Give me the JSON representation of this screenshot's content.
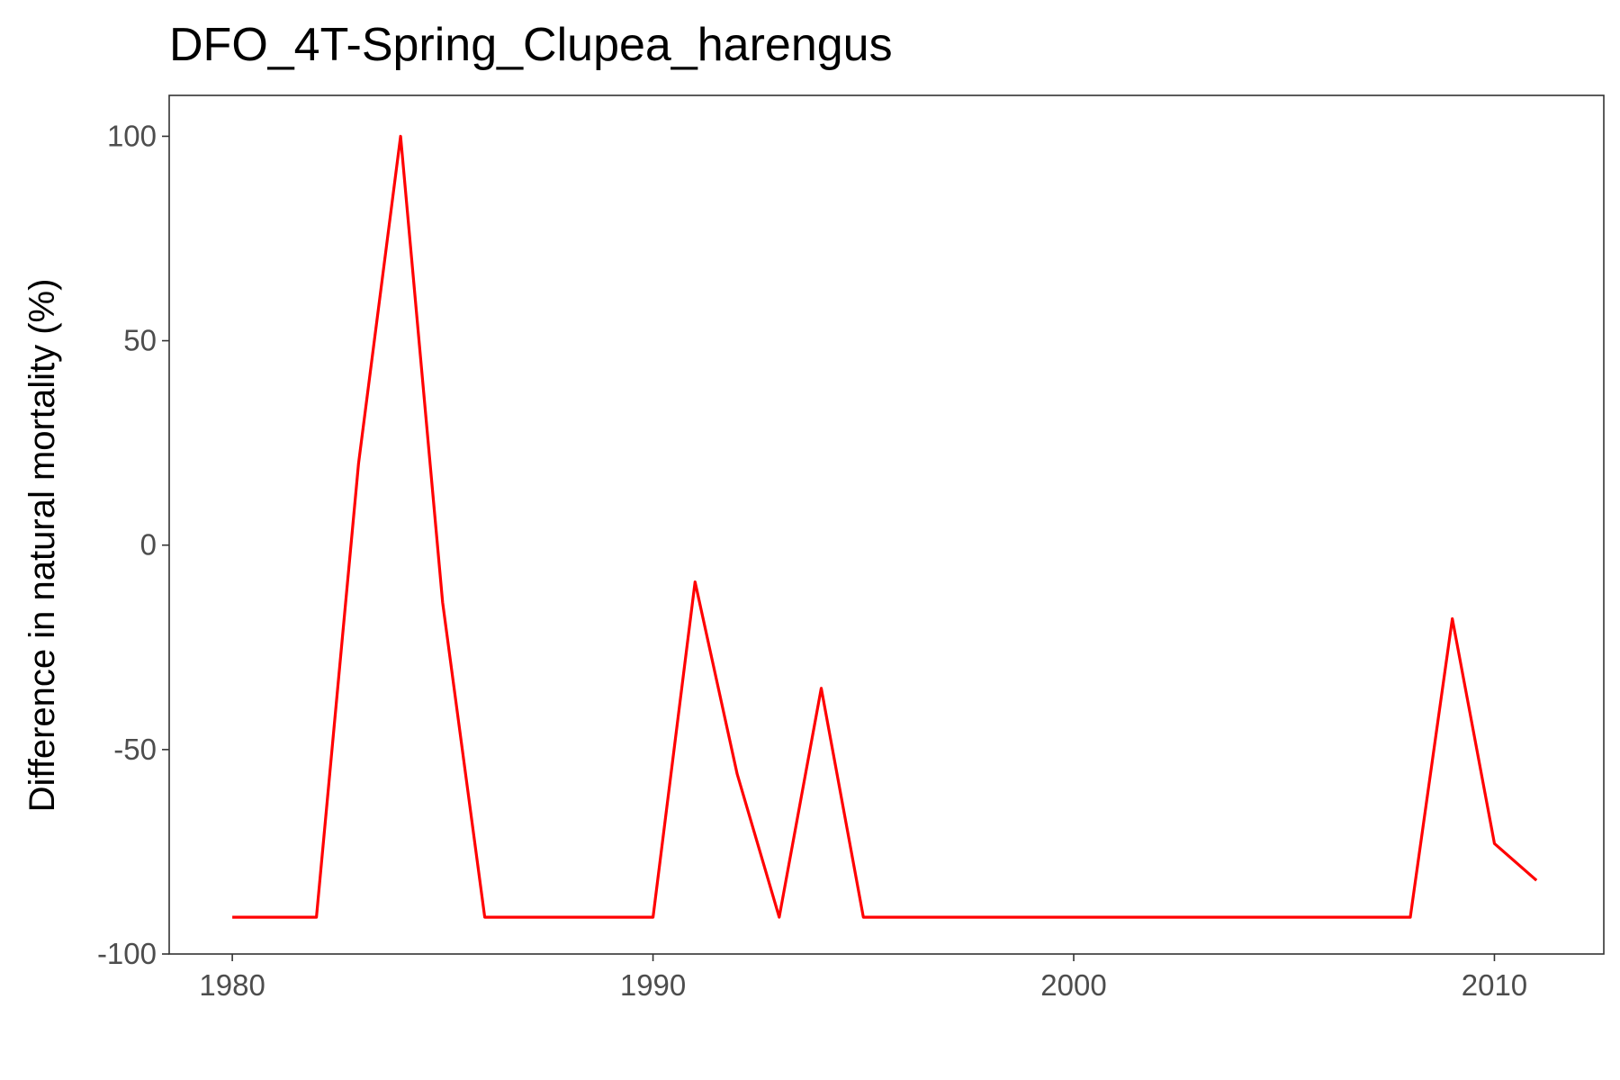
{
  "chart_data": {
    "type": "line",
    "title": "DFO_4T-Spring_Clupea_harengus",
    "xlabel": "",
    "ylabel": "Difference in natural mortality (%)",
    "xlim": [
      1978.5,
      2012.6
    ],
    "ylim": [
      -100,
      110
    ],
    "x_ticks": [
      1980,
      1990,
      2000,
      2010
    ],
    "y_ticks": [
      -100,
      -50,
      0,
      50,
      100
    ],
    "grid": false,
    "series": [
      {
        "color": "#ff0000",
        "x": [
          1980,
          1981,
          1982,
          1983,
          1984,
          1985,
          1986,
          1987,
          1988,
          1989,
          1990,
          1991,
          1992,
          1993,
          1994,
          1995,
          1996,
          1997,
          1998,
          1999,
          2000,
          2001,
          2002,
          2003,
          2004,
          2005,
          2006,
          2007,
          2008,
          2009,
          2010,
          2011
        ],
        "y": [
          -91,
          -91,
          -91,
          20,
          100,
          -14,
          -91,
          -91,
          -91,
          -91,
          -91,
          -9,
          -56,
          -91,
          -35,
          -91,
          -91,
          -91,
          -91,
          -91,
          -91,
          -91,
          -91,
          -91,
          -91,
          -91,
          -91,
          -91,
          -91,
          -18,
          -73,
          -82
        ]
      }
    ]
  }
}
